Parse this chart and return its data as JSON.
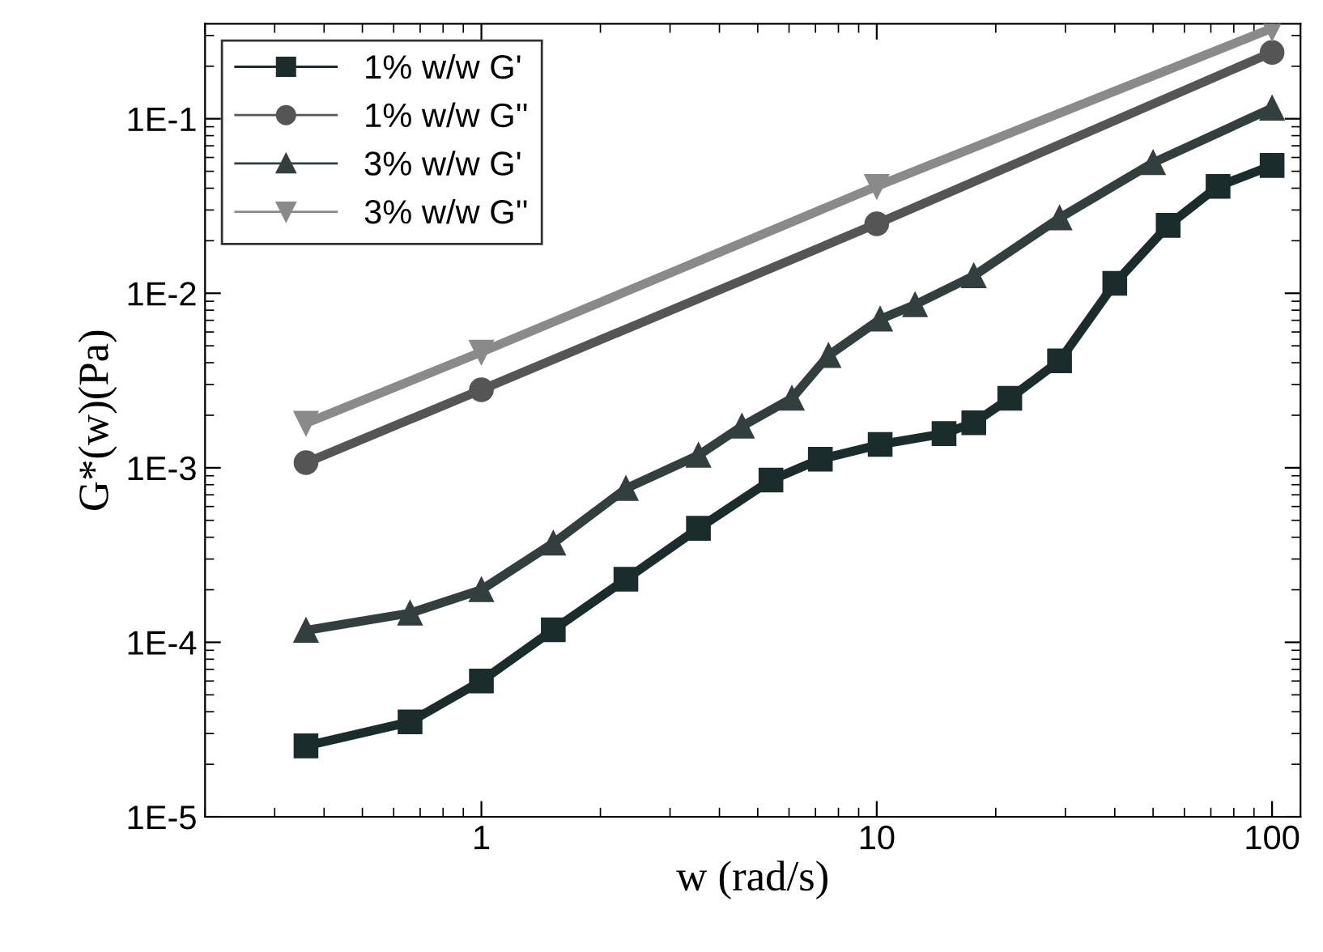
{
  "chart_data": {
    "type": "line",
    "xlabel": "w (rad/s)",
    "ylabel": "G*(w)(Pa)",
    "log": "xy",
    "xlim": [
      0.2,
      118
    ],
    "ylim": [
      1e-05,
      0.35
    ],
    "xticks": [
      1,
      10,
      100
    ],
    "yticks": [
      {
        "value": 1e-05,
        "label": "1E-5"
      },
      {
        "value": 0.0001,
        "label": "1E-4"
      },
      {
        "value": 0.001,
        "label": "1E-3"
      },
      {
        "value": 0.01,
        "label": "1E-2"
      },
      {
        "value": 0.1,
        "label": "1E-1"
      }
    ],
    "grid": false,
    "legend": "top left",
    "line_style": "solid",
    "series": [
      {
        "name": "1% w/w G'",
        "color": "#1a2c2c",
        "marker": "square",
        "x": [
          0.36,
          0.66,
          1,
          1.52,
          2.32,
          3.54,
          5.4,
          7.2,
          10.2,
          14.8,
          17.6,
          21.7,
          29,
          40,
          54.6,
          73,
          100
        ],
        "values": [
          2.55e-05,
          3.5e-05,
          6e-05,
          0.000118,
          0.00023,
          0.00045,
          0.00085,
          0.00112,
          0.00136,
          0.00157,
          0.00181,
          0.0025,
          0.0041,
          0.0114,
          0.0245,
          0.041,
          0.054
        ]
      },
      {
        "name": "1% w/w G''",
        "color": "#555555",
        "marker": "circle",
        "x": [
          0.36,
          1,
          10,
          100
        ],
        "values": [
          0.00107,
          0.0028,
          0.025,
          0.24
        ]
      },
      {
        "name": "3% w/w G'",
        "color": "#333f3f",
        "marker": "triangle",
        "x": [
          0.36,
          0.66,
          1,
          1.52,
          2.32,
          3.54,
          4.56,
          6.1,
          7.55,
          10.2,
          12.5,
          17.6,
          29,
          50,
          100
        ],
        "values": [
          0.000117,
          0.000147,
          0.0002,
          0.00037,
          0.00076,
          0.00118,
          0.00173,
          0.0025,
          0.0044,
          0.0071,
          0.0086,
          0.0126,
          0.027,
          0.056,
          0.115
        ]
      },
      {
        "name": "3% w/w G''",
        "color": "#8a8a8a",
        "marker": "triangle_down",
        "x": [
          0.36,
          1,
          10,
          100
        ],
        "values": [
          0.0018,
          0.0046,
          0.041,
          0.33
        ]
      }
    ]
  }
}
